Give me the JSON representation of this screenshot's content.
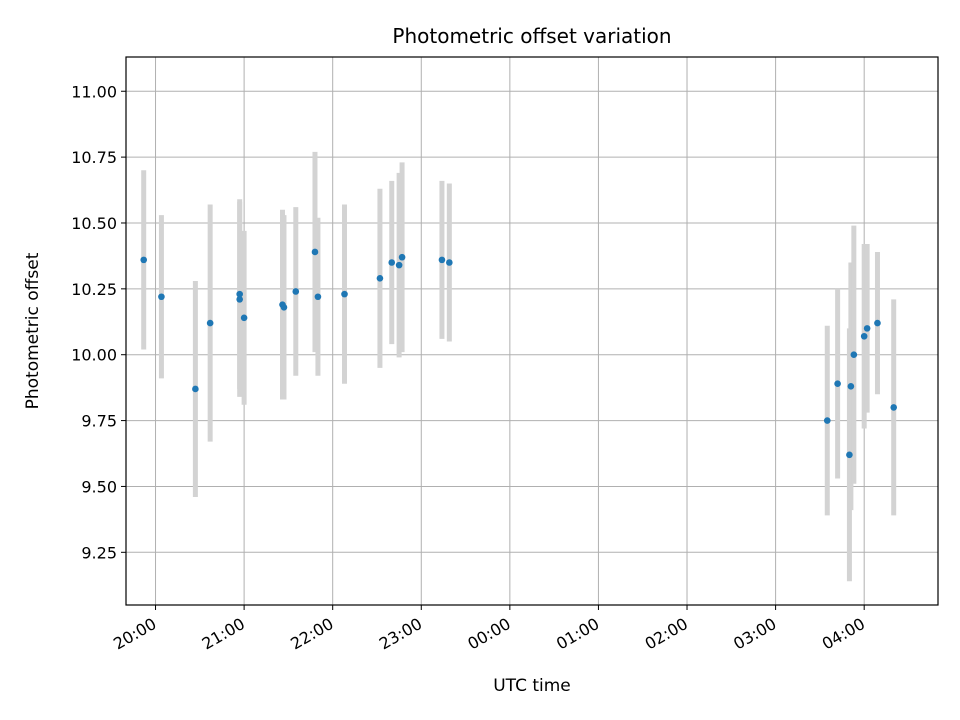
{
  "chart_data": {
    "type": "scatter",
    "title": "Photometric offset variation",
    "xlabel": "UTC time",
    "ylabel": "Photometric offset",
    "xlim": [
      "19:40",
      "04:50"
    ],
    "ylim": [
      9.05,
      11.13
    ],
    "grid": true,
    "x_tick_labels": [
      "20:00",
      "21:00",
      "22:00",
      "23:00",
      "00:00",
      "01:00",
      "02:00",
      "03:00",
      "04:00"
    ],
    "y_tick_labels": [
      "9.25",
      "9.50",
      "9.75",
      "10.00",
      "10.25",
      "10.50",
      "10.75",
      "11.00"
    ],
    "marker_color": "#1f77b4",
    "errorbar_color": "#d3d3d3",
    "points": [
      {
        "t": "19:52",
        "y": 10.36,
        "err": 0.34
      },
      {
        "t": "20:04",
        "y": 10.22,
        "err": 0.31
      },
      {
        "t": "20:27",
        "y": 9.87,
        "err": 0.41
      },
      {
        "t": "20:37",
        "y": 10.12,
        "err": 0.45
      },
      {
        "t": "20:57",
        "y": 10.23,
        "err": 0.36
      },
      {
        "t": "20:57",
        "y": 10.21,
        "err": 0.37
      },
      {
        "t": "21:00",
        "y": 10.14,
        "err": 0.33
      },
      {
        "t": "21:26",
        "y": 10.19,
        "err": 0.36
      },
      {
        "t": "21:27",
        "y": 10.18,
        "err": 0.35
      },
      {
        "t": "21:35",
        "y": 10.24,
        "err": 0.32
      },
      {
        "t": "21:48",
        "y": 10.39,
        "err": 0.38
      },
      {
        "t": "21:50",
        "y": 10.22,
        "err": 0.3
      },
      {
        "t": "22:08",
        "y": 10.23,
        "err": 0.34
      },
      {
        "t": "22:32",
        "y": 10.29,
        "err": 0.34
      },
      {
        "t": "22:40",
        "y": 10.35,
        "err": 0.31
      },
      {
        "t": "22:45",
        "y": 10.34,
        "err": 0.35
      },
      {
        "t": "22:47",
        "y": 10.37,
        "err": 0.36
      },
      {
        "t": "23:14",
        "y": 10.36,
        "err": 0.3
      },
      {
        "t": "23:19",
        "y": 10.35,
        "err": 0.3
      },
      {
        "t": "03:35",
        "y": 9.75,
        "err": 0.36
      },
      {
        "t": "03:42",
        "y": 9.89,
        "err": 0.36
      },
      {
        "t": "03:50",
        "y": 9.62,
        "err": 0.48
      },
      {
        "t": "03:51",
        "y": 9.88,
        "err": 0.47
      },
      {
        "t": "03:53",
        "y": 10.0,
        "err": 0.49
      },
      {
        "t": "04:00",
        "y": 10.07,
        "err": 0.35
      },
      {
        "t": "04:02",
        "y": 10.1,
        "err": 0.32
      },
      {
        "t": "04:09",
        "y": 10.12,
        "err": 0.27
      },
      {
        "t": "04:20",
        "y": 9.8,
        "err": 0.41
      }
    ]
  }
}
